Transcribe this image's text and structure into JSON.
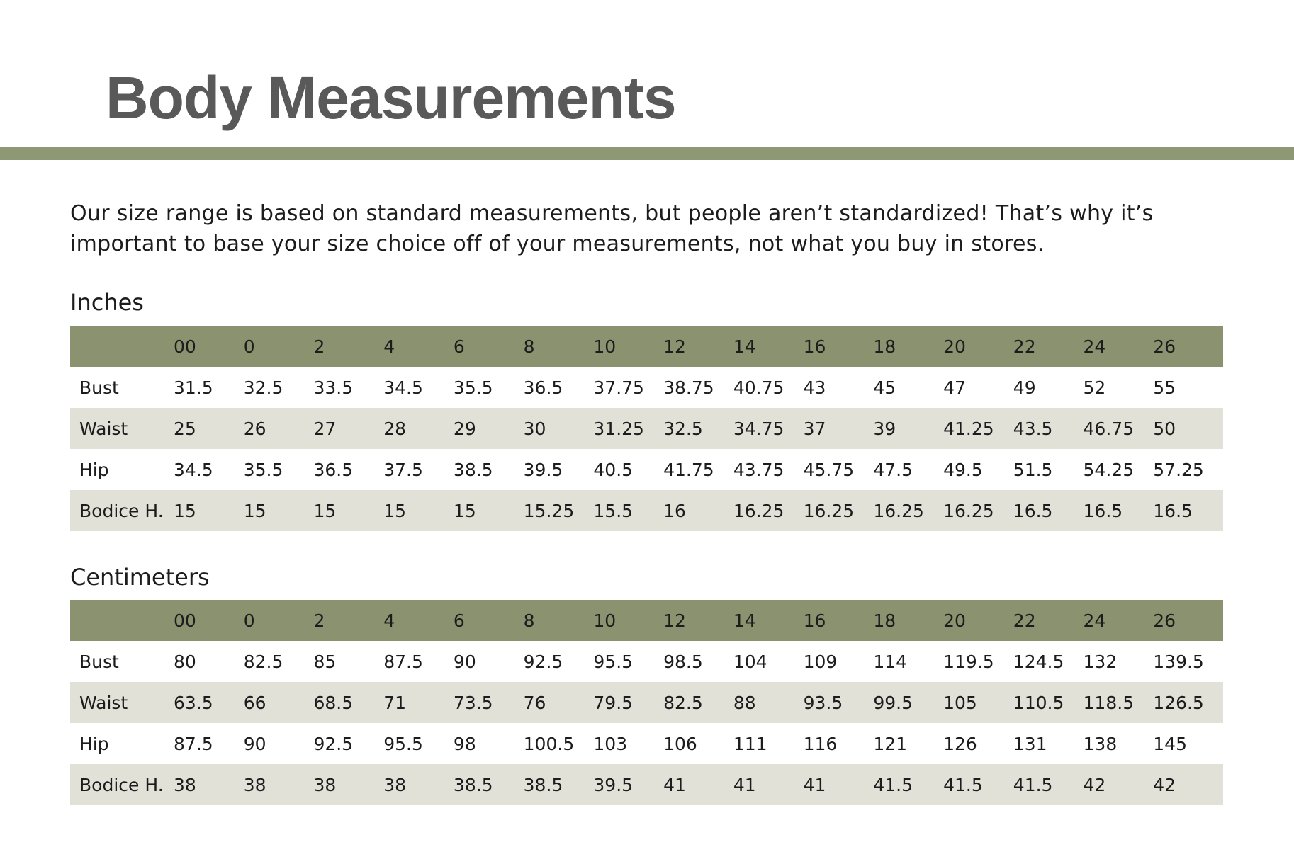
{
  "header": {
    "title": "Body Measurements"
  },
  "intro": "Our size range is based on standard measurements, but people aren’t standardized! That’s why it’s important to base your size choice off of your measurements, not what you buy in stores.",
  "tables": [
    {
      "caption": "Inches",
      "columns": [
        "00",
        "0",
        "2",
        "4",
        "6",
        "8",
        "10",
        "12",
        "14",
        "16",
        "18",
        "20",
        "22",
        "24",
        "26"
      ],
      "rows": [
        {
          "label": "Bust",
          "values": [
            "31.5",
            "32.5",
            "33.5",
            "34.5",
            "35.5",
            "36.5",
            "37.75",
            "38.75",
            "40.75",
            "43",
            "45",
            "47",
            "49",
            "52",
            "55"
          ]
        },
        {
          "label": "Waist",
          "values": [
            "25",
            "26",
            "27",
            "28",
            "29",
            "30",
            "31.25",
            "32.5",
            "34.75",
            "37",
            "39",
            "41.25",
            "43.5",
            "46.75",
            "50"
          ]
        },
        {
          "label": "Hip",
          "values": [
            "34.5",
            "35.5",
            "36.5",
            "37.5",
            "38.5",
            "39.5",
            "40.5",
            "41.75",
            "43.75",
            "45.75",
            "47.5",
            "49.5",
            "51.5",
            "54.25",
            "57.25"
          ]
        },
        {
          "label": "Bodice H.",
          "values": [
            "15",
            "15",
            "15",
            "15",
            "15",
            "15.25",
            "15.5",
            "16",
            "16.25",
            "16.25",
            "16.25",
            "16.25",
            "16.5",
            "16.5",
            "16.5"
          ]
        }
      ]
    },
    {
      "caption": "Centimeters",
      "columns": [
        "00",
        "0",
        "2",
        "4",
        "6",
        "8",
        "10",
        "12",
        "14",
        "16",
        "18",
        "20",
        "22",
        "24",
        "26"
      ],
      "rows": [
        {
          "label": "Bust",
          "values": [
            "80",
            "82.5",
            "85",
            "87.5",
            "90",
            "92.5",
            "95.5",
            "98.5",
            "104",
            "109",
            "114",
            "119.5",
            "124.5",
            "132",
            "139.5"
          ]
        },
        {
          "label": "Waist",
          "values": [
            "63.5",
            "66",
            "68.5",
            "71",
            "73.5",
            "76",
            "79.5",
            "82.5",
            "88",
            "93.5",
            "99.5",
            "105",
            "110.5",
            "118.5",
            "126.5"
          ]
        },
        {
          "label": "Hip",
          "values": [
            "87.5",
            "90",
            "92.5",
            "95.5",
            "98",
            "100.5",
            "103",
            "106",
            "111",
            "116",
            "121",
            "126",
            "131",
            "138",
            "145"
          ]
        },
        {
          "label": "Bodice H.",
          "values": [
            "38",
            "38",
            "38",
            "38",
            "38.5",
            "38.5",
            "39.5",
            "41",
            "41",
            "41",
            "41.5",
            "41.5",
            "41.5",
            "42",
            "42"
          ]
        }
      ]
    }
  ]
}
